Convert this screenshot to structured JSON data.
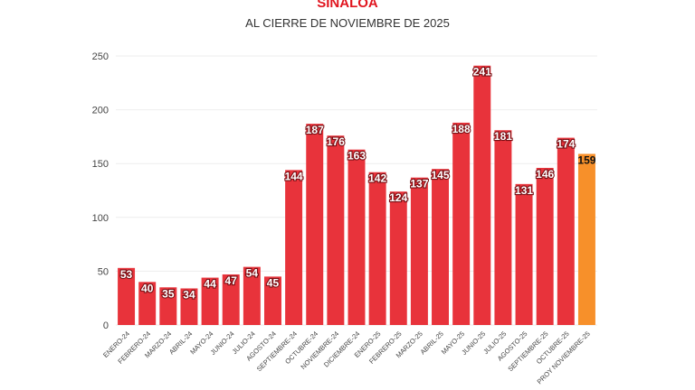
{
  "chart_data": {
    "type": "bar",
    "title": "SINALOA",
    "subtitle": "AL CIERRE DE NOVIEMBRE DE 2025",
    "xlabel": "",
    "ylabel": "",
    "ylim": [
      0,
      250
    ],
    "yticks": [
      0,
      50,
      100,
      150,
      200,
      250
    ],
    "grid": true,
    "categories": [
      "ENERO-24",
      "FEBRERO-24",
      "MARZO-24",
      "ABRIL-24",
      "MAYO-24",
      "JUNIO-24",
      "JULIO-24",
      "AGOSTO-24",
      "SEPTIEMBRE-24",
      "OCTUBRE-24",
      "NOVIEMBRE-24",
      "DICIEMBRE-24",
      "ENERO-25",
      "FEBRERO-25",
      "MARZO-25",
      "ABRIL-25",
      "MAYO-25",
      "JUNIO-25",
      "JULIO-25",
      "AGOSTO-25",
      "SEPTIEMBRE-25",
      "OCTUBRE-25",
      "PROY NOVIEMBRE-25"
    ],
    "values": [
      53,
      40,
      35,
      34,
      44,
      47,
      54,
      45,
      144,
      187,
      176,
      163,
      142,
      124,
      137,
      145,
      188,
      241,
      181,
      131,
      146,
      174,
      159
    ],
    "colors": {
      "bar": "#e8333b",
      "projection": "#f7902a",
      "title": "#e0141e"
    }
  }
}
